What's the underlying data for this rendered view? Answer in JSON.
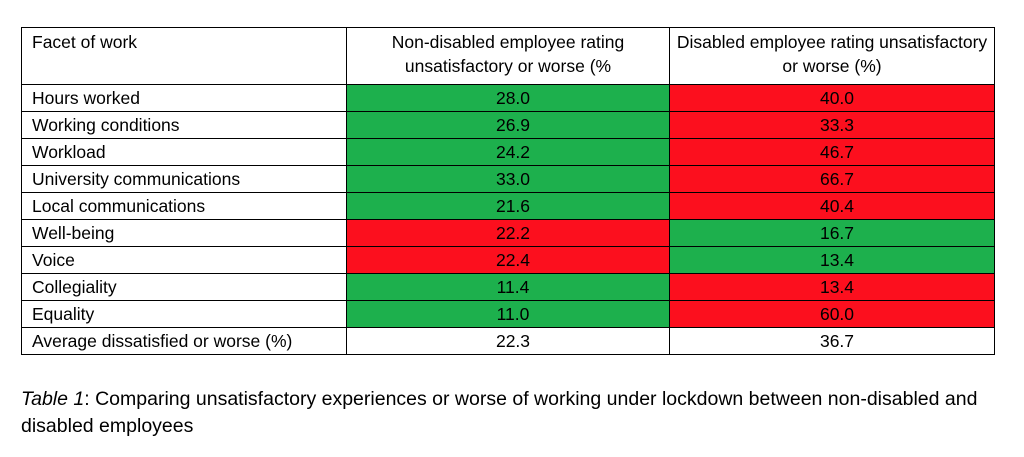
{
  "table": {
    "headers": [
      "Facet of work",
      "Non-disabled employee rating unsatisfactory or worse (%",
      "Disabled employee rating unsatisfactory or worse (%)"
    ],
    "rows": [
      {
        "facet": "Hours worked",
        "non_disabled": "28.0",
        "disabled": "40.0"
      },
      {
        "facet": "Working conditions",
        "non_disabled": "26.9",
        "disabled": "33.3"
      },
      {
        "facet": "Workload",
        "non_disabled": "24.2",
        "disabled": "46.7"
      },
      {
        "facet": "University communications",
        "non_disabled": "33.0",
        "disabled": "66.7"
      },
      {
        "facet": "Local communications",
        "non_disabled": "21.6",
        "disabled": "40.4"
      },
      {
        "facet": "Well-being",
        "non_disabled": "22.2",
        "disabled": "16.7"
      },
      {
        "facet": "Voice",
        "non_disabled": "22.4",
        "disabled": "13.4"
      },
      {
        "facet": "Collegiality",
        "non_disabled": "11.4",
        "disabled": "13.4"
      },
      {
        "facet": "Equality",
        "non_disabled": "11.0",
        "disabled": "60.0"
      },
      {
        "facet": "Average dissatisfied or worse (%)",
        "non_disabled": "22.3",
        "disabled": "36.7"
      }
    ],
    "cell_colors": {
      "lower": "#1db04d",
      "higher": "#fc0f1e",
      "none": "#ffffff"
    }
  },
  "caption": {
    "label": "Table 1",
    "text": ": Comparing unsatisfactory experiences or worse of working under lockdown between non-disabled and disabled employees"
  }
}
